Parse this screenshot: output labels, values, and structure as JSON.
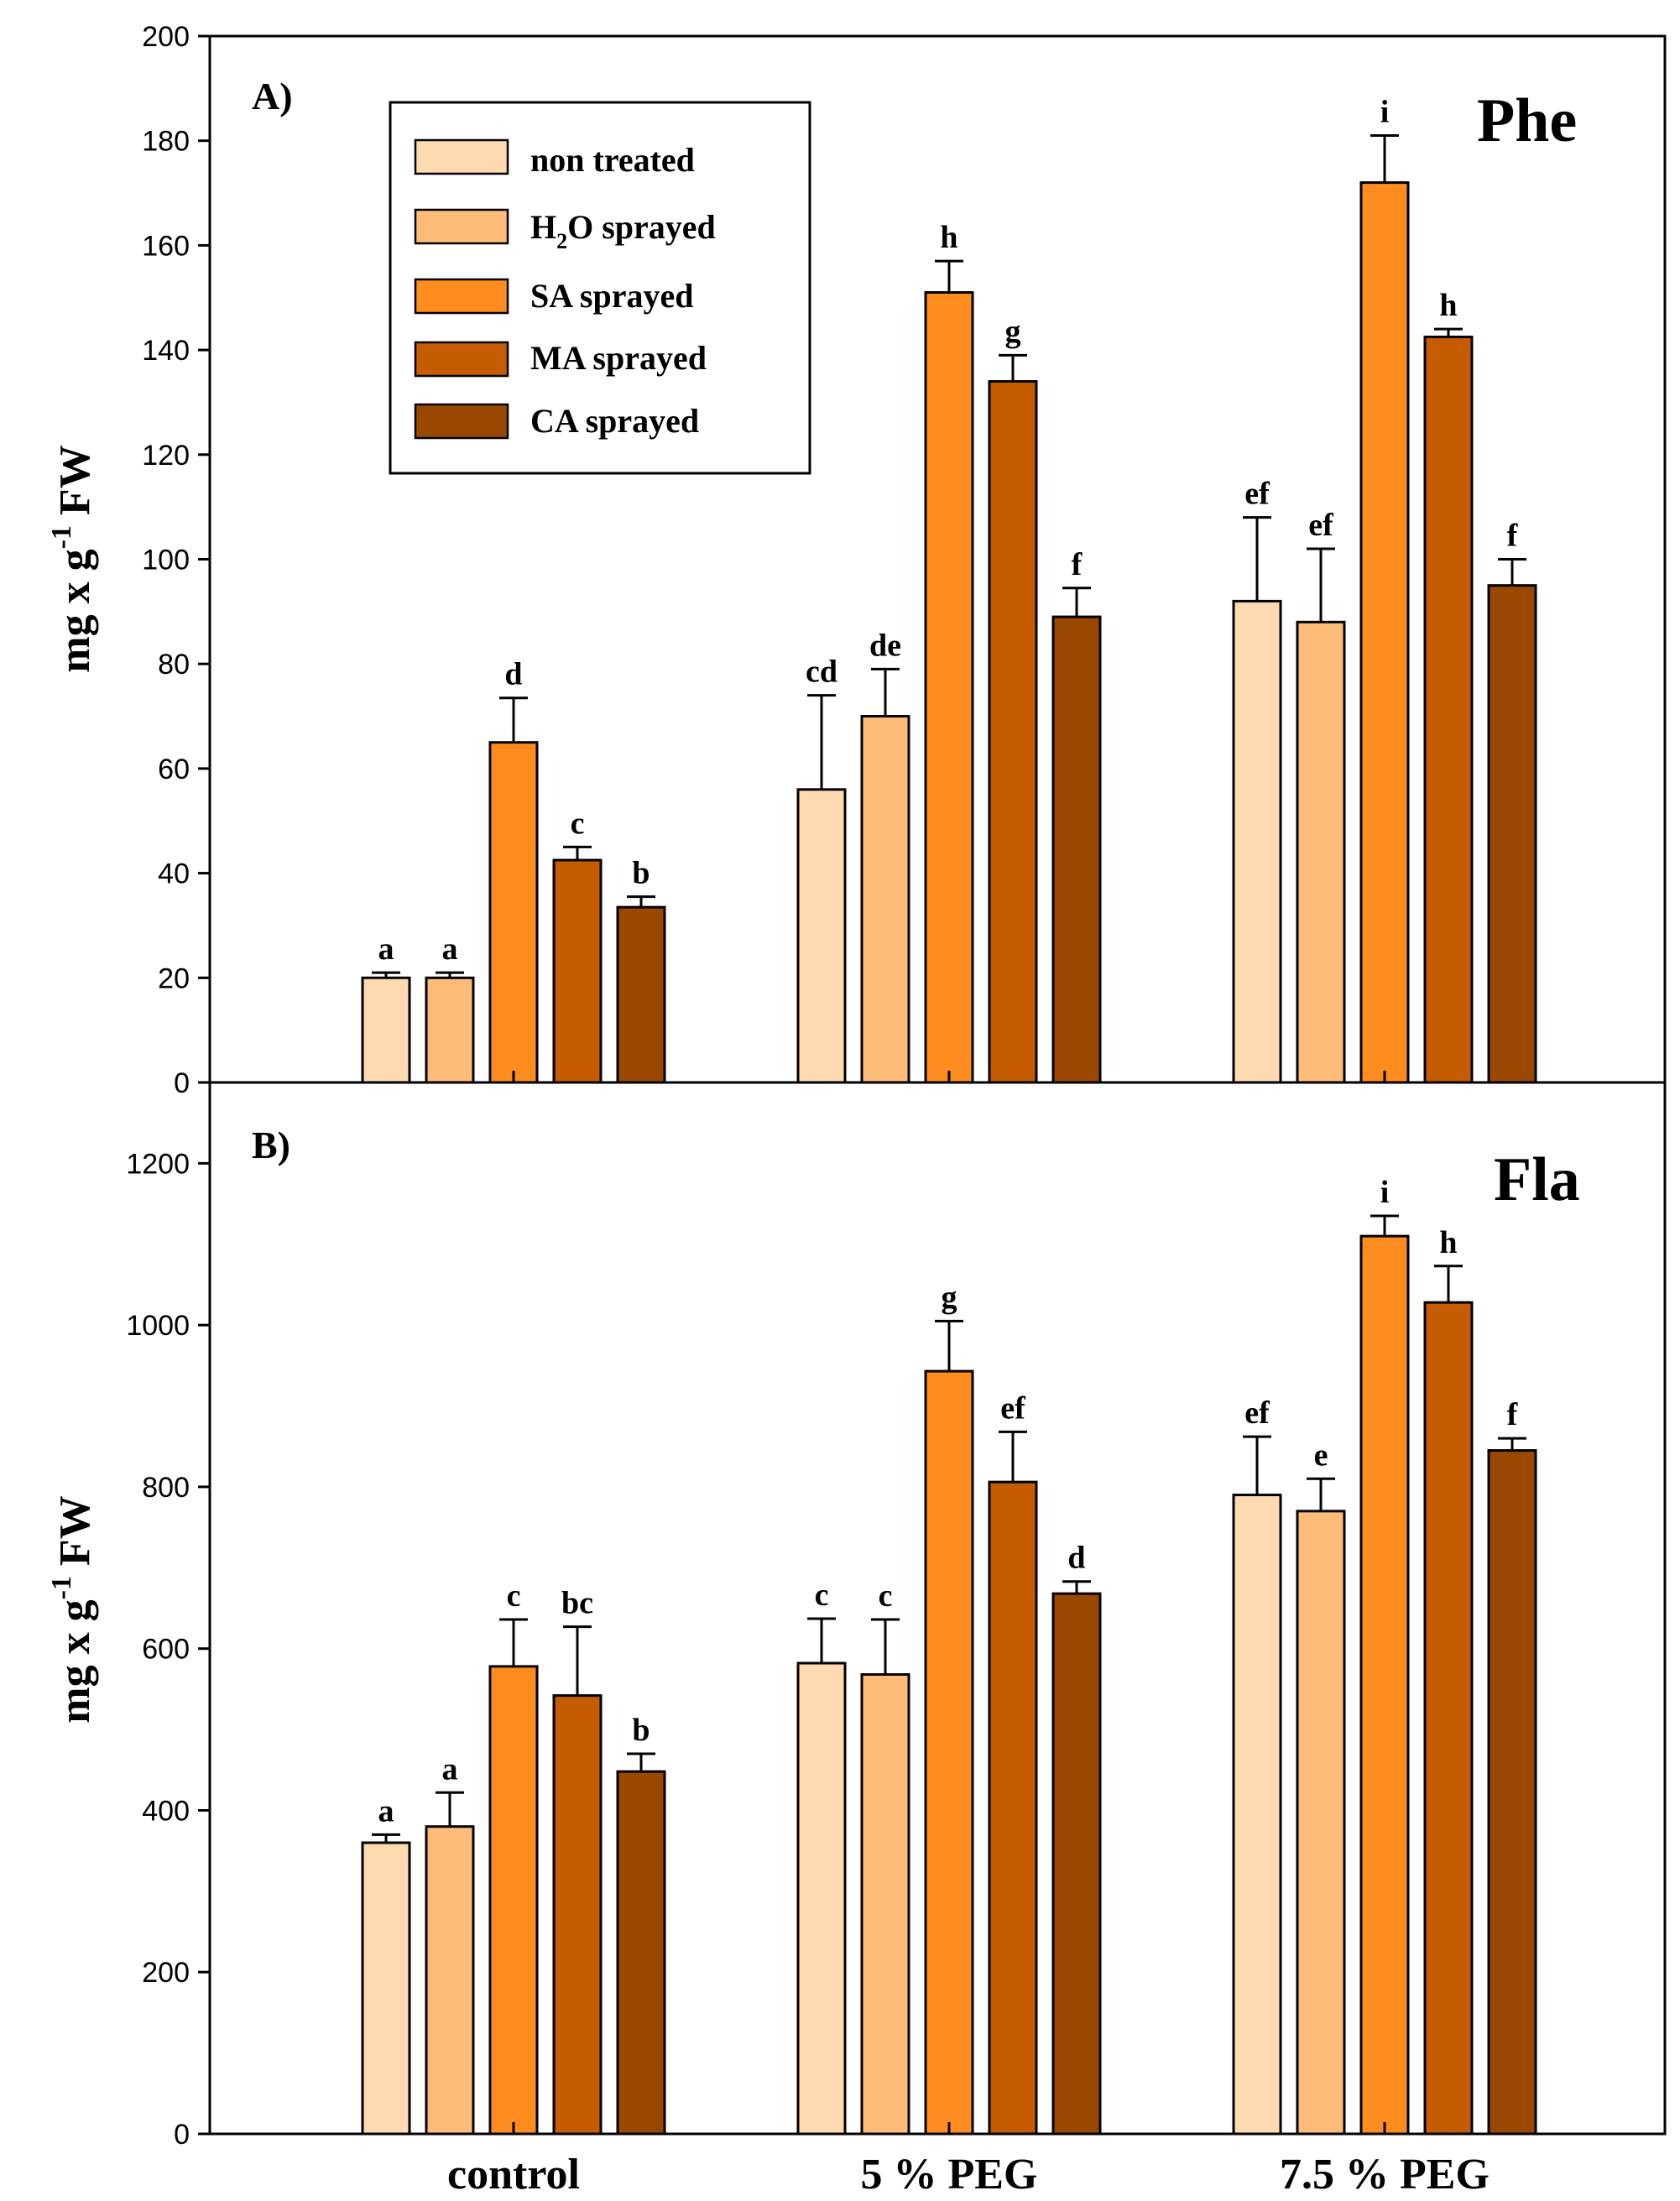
{
  "colors": {
    "non_treated": "#FFDAB0",
    "h2o_sprayed": "#FFBB78",
    "sa_sprayed": "#FF8C1F",
    "ma_sprayed": "#C55C00",
    "ca_sprayed": "#9A4700",
    "axis": "#000000"
  },
  "legend": {
    "items": [
      {
        "key": "non_treated",
        "label": "non treated"
      },
      {
        "key": "h2o_sprayed",
        "label_main": "H",
        "label_sub": "2",
        "label_rest": "O sprayed"
      },
      {
        "key": "sa_sprayed",
        "label": "SA sprayed"
      },
      {
        "key": "ma_sprayed",
        "label": "MA sprayed"
      },
      {
        "key": "ca_sprayed",
        "label": "CA sprayed"
      }
    ]
  },
  "chart_data": [
    {
      "type": "bar",
      "panel_label": "A)",
      "title": "Phe",
      "ylabel_main": "mg x g",
      "ylabel_sup": "-1",
      "ylabel_tail": "FW",
      "ylim": [
        0,
        200
      ],
      "yticks": [
        0,
        20,
        40,
        60,
        80,
        100,
        120,
        140,
        160,
        180,
        200
      ],
      "categories": [
        "control",
        "5 % PEG",
        "7.5 % PEG"
      ],
      "series": [
        {
          "name": "non treated",
          "key": "non_treated",
          "values": [
            20,
            56,
            92
          ],
          "errors": [
            1,
            18,
            16
          ],
          "labels": [
            "a",
            "cd",
            "ef"
          ]
        },
        {
          "name": "H2O sprayed",
          "key": "h2o_sprayed",
          "values": [
            20,
            70,
            88
          ],
          "errors": [
            1,
            9,
            14
          ],
          "labels": [
            "a",
            "de",
            "ef"
          ]
        },
        {
          "name": "SA sprayed",
          "key": "sa_sprayed",
          "values": [
            65,
            151,
            172
          ],
          "errors": [
            8.5,
            6,
            9
          ],
          "labels": [
            "d",
            "h",
            "i"
          ]
        },
        {
          "name": "MA sprayed",
          "key": "ma_sprayed",
          "values": [
            42.5,
            134,
            142.5
          ],
          "errors": [
            2.5,
            5,
            1.5
          ],
          "labels": [
            "c",
            "g",
            "h"
          ]
        },
        {
          "name": "CA sprayed",
          "key": "ca_sprayed",
          "values": [
            33.5,
            89,
            95
          ],
          "errors": [
            2,
            5.5,
            5
          ],
          "labels": [
            "b",
            "f",
            "f"
          ]
        }
      ]
    },
    {
      "type": "bar",
      "panel_label": "B)",
      "title": "Fla",
      "ylabel_main": "mg x g",
      "ylabel_sup": "-1",
      "ylabel_tail": "FW",
      "ylim": [
        0,
        1300
      ],
      "yticks": [
        0,
        200,
        400,
        600,
        800,
        1000,
        1200
      ],
      "categories": [
        "control",
        "5 % PEG",
        "7.5 % PEG"
      ],
      "series": [
        {
          "name": "non treated",
          "key": "non_treated",
          "values": [
            360,
            582,
            790
          ],
          "errors": [
            10,
            55,
            72
          ],
          "labels": [
            "a",
            "c",
            "ef"
          ]
        },
        {
          "name": "H2O sprayed",
          "key": "h2o_sprayed",
          "values": [
            380,
            568,
            770
          ],
          "errors": [
            42,
            68,
            40
          ],
          "labels": [
            "a",
            "c",
            "e"
          ]
        },
        {
          "name": "SA sprayed",
          "key": "sa_sprayed",
          "values": [
            578,
            943,
            1110
          ],
          "errors": [
            58,
            62,
            25
          ],
          "labels": [
            "c",
            "g",
            "i"
          ]
        },
        {
          "name": "MA sprayed",
          "key": "ma_sprayed",
          "values": [
            542,
            806,
            1028
          ],
          "errors": [
            85,
            62,
            45
          ],
          "labels": [
            "bc",
            "ef",
            "h"
          ]
        },
        {
          "name": "CA sprayed",
          "key": "ca_sprayed",
          "values": [
            448,
            668,
            845
          ],
          "errors": [
            22,
            15,
            15
          ],
          "labels": [
            "b",
            "d",
            "f"
          ]
        }
      ]
    }
  ]
}
